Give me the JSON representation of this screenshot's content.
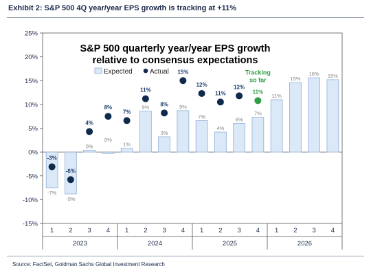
{
  "exhibit_title": "Exhibit 2: S&P 500 4Q year/year EPS growth is tracking at +11%",
  "source_note": "Source: FactSet, Goldman Sachs Global Investment Research",
  "colors": {
    "expected_fill": "#dbe8f7",
    "expected_stroke": "#8eaed6",
    "actual_dot": "#102a4c",
    "tracking_dot": "#2e9e44",
    "tracking_text": "#2e9e44",
    "actual_label": "#1f3d6b",
    "expected_label": "#808080",
    "axis_text": "#1a2a4a"
  },
  "chart_data": {
    "type": "bar",
    "title_line1": "S&P 500 quarterly year/year EPS growth",
    "title_line2": "relative to consensus expectations",
    "ylim": [
      -15,
      25
    ],
    "y_ticks": [
      -15,
      -10,
      -5,
      0,
      5,
      10,
      15,
      20,
      25
    ],
    "y_tick_labels": [
      "-15%",
      "-10%",
      "-5%",
      "0%",
      "5%",
      "10%",
      "15%",
      "20%",
      "25%"
    ],
    "grid": false,
    "legend_position": "top-left",
    "legend": {
      "expected": "Expected",
      "actual": "Actual"
    },
    "categories": [
      "1",
      "2",
      "3",
      "4",
      "1",
      "2",
      "3",
      "4",
      "1",
      "2",
      "3",
      "4",
      "1",
      "2",
      "3",
      "4"
    ],
    "year_groups": [
      {
        "label": "2023",
        "start": 0,
        "count": 4
      },
      {
        "label": "2024",
        "start": 4,
        "count": 4
      },
      {
        "label": "2025",
        "start": 8,
        "count": 4
      },
      {
        "label": "2026",
        "start": 12,
        "count": 4
      }
    ],
    "series": [
      {
        "name": "Expected",
        "kind": "bar",
        "values": [
          -7.5,
          -8.8,
          0.4,
          -0.3,
          0.8,
          8.6,
          3.2,
          8.7,
          6.6,
          4.2,
          6.0,
          7.3,
          11.0,
          14.6,
          15.6,
          15.2
        ],
        "labels": [
          "-7%",
          "-9%",
          "0%",
          "0%",
          "1%",
          "9%",
          "3%",
          "9%",
          "7%",
          "4%",
          "6%",
          "7%",
          "11%",
          "15%",
          "16%",
          "15%"
        ]
      },
      {
        "name": "Actual",
        "kind": "dot",
        "values": [
          -3.1,
          -5.8,
          4.3,
          7.5,
          6.6,
          11.2,
          8.2,
          15.0,
          12.3,
          10.5,
          11.8,
          null,
          null,
          null,
          null,
          null
        ],
        "labels": [
          "-3%",
          "-6%",
          "4%",
          "8%",
          "7%",
          "11%",
          "8%",
          "15%",
          "12%",
          "11%",
          "12%",
          null,
          null,
          null,
          null,
          null
        ]
      }
    ],
    "tracking": {
      "index": 11,
      "value": 10.8,
      "value_label": "11%",
      "line1": "Tracking",
      "line2": "so far"
    }
  }
}
